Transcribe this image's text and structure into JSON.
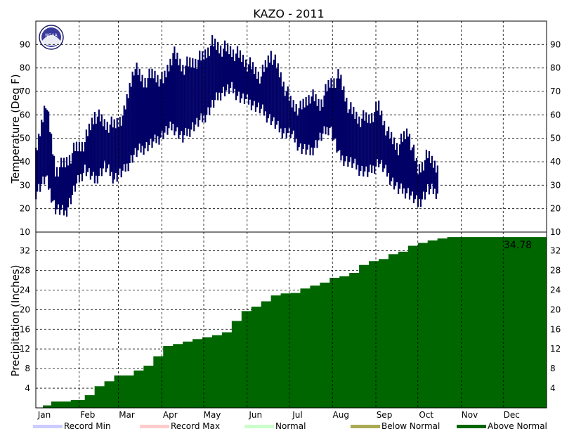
{
  "chart_data": [
    {
      "type": "bar",
      "title": "KAZO - 2011",
      "ylabel": "Temperature (Deg F)",
      "ylim": [
        10,
        100
      ],
      "yticks": [
        20,
        30,
        40,
        50,
        60,
        70,
        80,
        90
      ],
      "bottom_tick": "10",
      "xticks": [
        "Jan",
        "Feb",
        "Mar",
        "Apr",
        "May",
        "Jun",
        "Jul",
        "Aug",
        "Sep",
        "Oct",
        "Nov",
        "Dec"
      ],
      "grid": true,
      "series": [
        {
          "name": "Daily high/low range",
          "color": "#000066",
          "x": [
            "Jan 1",
            "Jan 8",
            "Jan 15",
            "Jan 22",
            "Jan 29",
            "Feb 5",
            "Feb 12",
            "Feb 19",
            "Feb 26",
            "Mar 5",
            "Mar 12",
            "Mar 19",
            "Mar 26",
            "Apr 2",
            "Apr 9",
            "Apr 16",
            "Apr 23",
            "Apr 30",
            "May 7",
            "May 14",
            "May 21",
            "May 28",
            "Jun 4",
            "Jun 11",
            "Jun 18",
            "Jun 25",
            "Jul 2",
            "Jul 9",
            "Jul 16",
            "Jul 23",
            "Jul 30",
            "Aug 6",
            "Aug 13",
            "Aug 20",
            "Aug 27",
            "Sep 3",
            "Sep 10",
            "Sep 17",
            "Sep 24",
            "Oct 1",
            "Oct 8",
            "Oct 15"
          ],
          "low": [
            27,
            33,
            20,
            18,
            29,
            37,
            32,
            38,
            33,
            36,
            43,
            46,
            48,
            52,
            55,
            50,
            55,
            58,
            64,
            70,
            71,
            67,
            65,
            62,
            58,
            53,
            52,
            46,
            44,
            50,
            55,
            42,
            40,
            37,
            35,
            40,
            34,
            28,
            27,
            22,
            28,
            27
          ],
          "high": [
            46,
            70,
            40,
            43,
            49,
            52,
            64,
            60,
            59,
            64,
            84,
            78,
            81,
            78,
            90,
            84,
            86,
            88,
            94,
            92,
            91,
            88,
            84,
            80,
            90,
            80,
            69,
            66,
            72,
            68,
            77,
            80,
            66,
            62,
            62,
            67,
            55,
            50,
            57,
            40,
            46,
            42
          ]
        }
      ]
    },
    {
      "type": "area",
      "ylabel": "Precipitation (Inches)",
      "ylim": [
        0,
        35.8
      ],
      "yticks": [
        4,
        8,
        12,
        16,
        20,
        24,
        28,
        32
      ],
      "xticks": [
        "Jan",
        "Feb",
        "Mar",
        "Apr",
        "May",
        "Jun",
        "Jul",
        "Aug",
        "Sep",
        "Oct",
        "Nov",
        "Dec"
      ],
      "annotation": "34.78",
      "grid": true,
      "series": [
        {
          "name": "Above Normal",
          "color": "#006600",
          "x": [
            "Jan 1",
            "Jan 6",
            "Jan 12",
            "Jan 26",
            "Feb 5",
            "Feb 12",
            "Feb 19",
            "Feb 26",
            "Mar 5",
            "Mar 12",
            "Mar 19",
            "Mar 26",
            "Apr 2",
            "Apr 9",
            "Apr 16",
            "Apr 23",
            "Apr 30",
            "May 7",
            "May 14",
            "May 21",
            "May 28",
            "Jun 4",
            "Jun 11",
            "Jun 18",
            "Jun 25",
            "Jul 2",
            "Jul 9",
            "Jul 16",
            "Jul 23",
            "Jul 30",
            "Aug 6",
            "Aug 13",
            "Aug 20",
            "Aug 27",
            "Sep 3",
            "Sep 10",
            "Sep 17",
            "Sep 24",
            "Oct 1",
            "Oct 8",
            "Oct 15",
            "Oct 22",
            "Dec 31"
          ],
          "y": [
            0.0,
            0.5,
            1.3,
            1.6,
            2.6,
            4.4,
            5.4,
            6.6,
            6.6,
            7.6,
            8.6,
            10.5,
            12.6,
            13.0,
            13.5,
            14.0,
            14.4,
            14.8,
            15.4,
            17.7,
            19.7,
            20.6,
            21.7,
            22.9,
            23.3,
            23.4,
            24.3,
            24.9,
            25.5,
            26.5,
            26.8,
            27.5,
            29.1,
            29.9,
            30.3,
            31.3,
            31.8,
            33.0,
            33.6,
            34.1,
            34.5,
            34.78,
            34.78
          ]
        }
      ]
    }
  ],
  "legend": [
    {
      "label": "Record Min",
      "color": "#ccccff"
    },
    {
      "label": "Record Max",
      "color": "#ffcccc"
    },
    {
      "label": "Normal",
      "color": "#ccffcc"
    },
    {
      "label": "Below Normal",
      "color": "#aaaa55"
    },
    {
      "label": "Above Normal",
      "color": "#006600"
    }
  ],
  "logo": {
    "text": "NOAA",
    "color": "#3b3b9e"
  }
}
